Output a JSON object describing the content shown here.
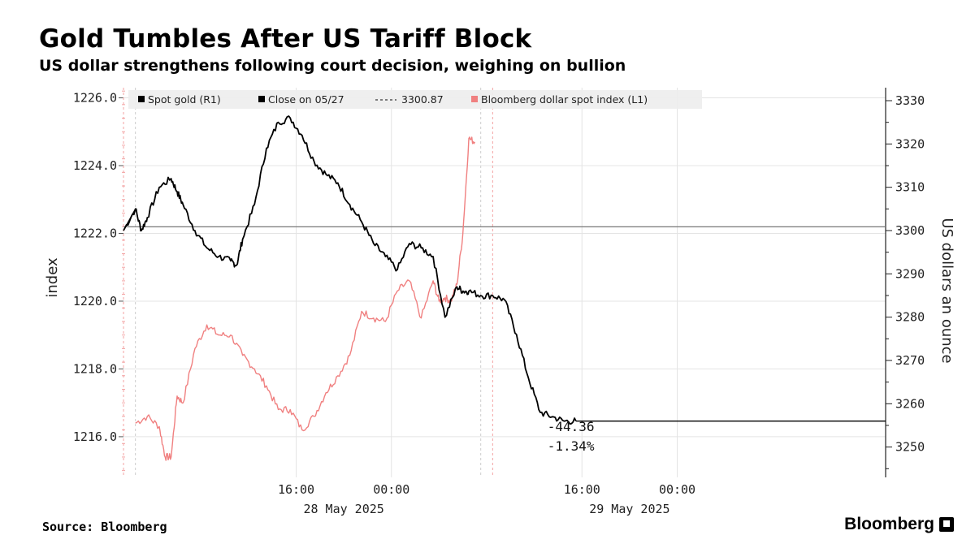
{
  "title": "Gold Tumbles After US Tariff Block",
  "subtitle": "US dollar strengthens following court decision, weighing on bullion",
  "source": "Source: Bloomberg",
  "brand": "Bloomberg",
  "colors": {
    "gold": "#000000",
    "dollar_index": "#f08080",
    "reference_line": "#777777",
    "grid": "#e4e4e4"
  },
  "chart_data": {
    "type": "line",
    "title": "Gold Tumbles After US Tariff Block",
    "subtitle": "US dollar strengthens following court decision, weighing on bullion",
    "legend": {
      "placement": "top-left",
      "items": [
        {
          "label": "Spot gold (R1)",
          "color": "#000000",
          "style": "solid"
        },
        {
          "label": "Close on 05/27",
          "color": "#000000",
          "style": "solid"
        },
        {
          "label": "3300.87",
          "color": "#555555",
          "style": "dashed"
        },
        {
          "label": "Bloomberg dollar spot index (L1)",
          "color": "#f08080",
          "style": "solid"
        }
      ]
    },
    "y_left": {
      "label": "index",
      "ylim": [
        1214.8,
        1226.3
      ],
      "ticks": [
        "1226.0",
        "1224.0",
        "1222.0",
        "1220.0",
        "1218.0",
        "1216.0"
      ],
      "tick_values": [
        1226,
        1224,
        1222,
        1220,
        1218,
        1216
      ]
    },
    "y_right": {
      "label": "US dollars an ounce",
      "ylim": [
        3243,
        3333
      ],
      "ticks": [
        "3330",
        "3320",
        "3310",
        "3300",
        "3290",
        "3280",
        "3270",
        "3260",
        "3250"
      ],
      "tick_values": [
        3330,
        3320,
        3310,
        3300,
        3290,
        3280,
        3270,
        3260,
        3250
      ]
    },
    "x_axis": {
      "range_hours": [
        0,
        64
      ],
      "ticks": [
        {
          "hours": 14.5,
          "label": "16:00"
        },
        {
          "hours": 22.5,
          "label": "00:00"
        },
        {
          "hours": 38.5,
          "label": "16:00"
        },
        {
          "hours": 46.5,
          "label": "00:00"
        }
      ],
      "dates": [
        {
          "hours": 18.5,
          "label": "28 May 2025"
        },
        {
          "hours": 42.5,
          "label": "29 May 2025"
        }
      ]
    },
    "reference_line": {
      "value": 3300.87,
      "label": "3300.87"
    },
    "annotation": {
      "lines": [
        "-44.36",
        "-1.34%"
      ]
    },
    "grid": true,
    "series": [
      {
        "name": "Spot gold (R1)",
        "axis": "right",
        "x": [
          0,
          1,
          1.5,
          2,
          3,
          4,
          4.5,
          5,
          6,
          7,
          8,
          9,
          9.5,
          10,
          11,
          12,
          13,
          14,
          15,
          16,
          17,
          18,
          19,
          20,
          21,
          22,
          23,
          24,
          25,
          26,
          27,
          28,
          28.5,
          29,
          30,
          31,
          32,
          33,
          34,
          35,
          36,
          37,
          38
        ],
        "y": [
          3300,
          3305,
          3300,
          3303,
          3310,
          3312,
          3309,
          3306,
          3300,
          3296,
          3294,
          3293,
          3292,
          3298,
          3306,
          3319,
          3325,
          3326,
          3322,
          3316,
          3313,
          3311,
          3306,
          3302,
          3297,
          3294,
          3291,
          3297,
          3296,
          3294,
          3280,
          3287,
          3286,
          3286,
          3285,
          3285,
          3284,
          3276,
          3266,
          3258,
          3257,
          3256,
          3256
        ]
      },
      {
        "name": "Bloomberg dollar spot index (L1)",
        "axis": "left",
        "x": [
          1,
          2,
          3,
          3.5,
          4,
          4.5,
          5,
          6,
          7,
          8,
          9,
          10,
          11,
          12,
          13,
          14,
          15,
          16,
          17,
          18,
          19,
          20,
          21,
          22,
          23,
          24,
          25,
          26,
          26.5,
          27,
          27.5,
          28,
          28.5,
          29,
          29.5
        ],
        "y": [
          1216.4,
          1216.6,
          1216.3,
          1215.4,
          1215.4,
          1217.2,
          1217.0,
          1218.6,
          1219.3,
          1219.0,
          1219.0,
          1218.4,
          1218.0,
          1217.5,
          1216.8,
          1216.8,
          1216.2,
          1216.6,
          1217.3,
          1217.8,
          1218.4,
          1219.7,
          1219.5,
          1219.4,
          1220.3,
          1220.6,
          1219.5,
          1220.6,
          1220.0,
          1220.1,
          1220.0,
          1220.5,
          1222.0,
          1224.8,
          1224.7
        ]
      }
    ]
  }
}
